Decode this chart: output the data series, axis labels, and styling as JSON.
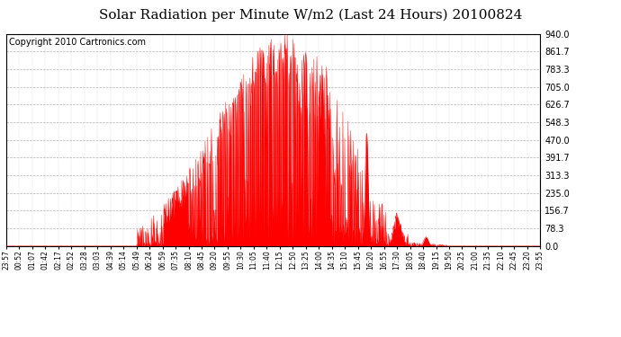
{
  "title": "Solar Radiation per Minute W/m2 (Last 24 Hours) 20100824",
  "copyright": "Copyright 2010 Cartronics.com",
  "y_ticks": [
    0.0,
    78.3,
    156.7,
    235.0,
    313.3,
    391.7,
    470.0,
    548.3,
    626.7,
    705.0,
    783.3,
    861.7,
    940.0
  ],
  "y_max": 940.0,
  "y_min": 0.0,
  "fill_color": "#ff0000",
  "line_color": "#ff0000",
  "bg_color": "#ffffff",
  "grid_color": "#b0b0b0",
  "title_fontsize": 11,
  "copyright_fontsize": 7,
  "x_labels": [
    "23:57",
    "00:52",
    "01:07",
    "01:42",
    "02:17",
    "02:52",
    "03:28",
    "03:03",
    "04:39",
    "05:14",
    "05:49",
    "06:24",
    "06:59",
    "07:35",
    "08:10",
    "08:45",
    "09:20",
    "09:55",
    "10:30",
    "11:05",
    "11:40",
    "12:15",
    "12:50",
    "13:25",
    "14:00",
    "14:35",
    "15:10",
    "15:45",
    "16:20",
    "16:55",
    "17:30",
    "18:05",
    "18:40",
    "19:15",
    "19:50",
    "20:25",
    "21:00",
    "21:35",
    "22:10",
    "22:45",
    "23:20",
    "23:55"
  ]
}
